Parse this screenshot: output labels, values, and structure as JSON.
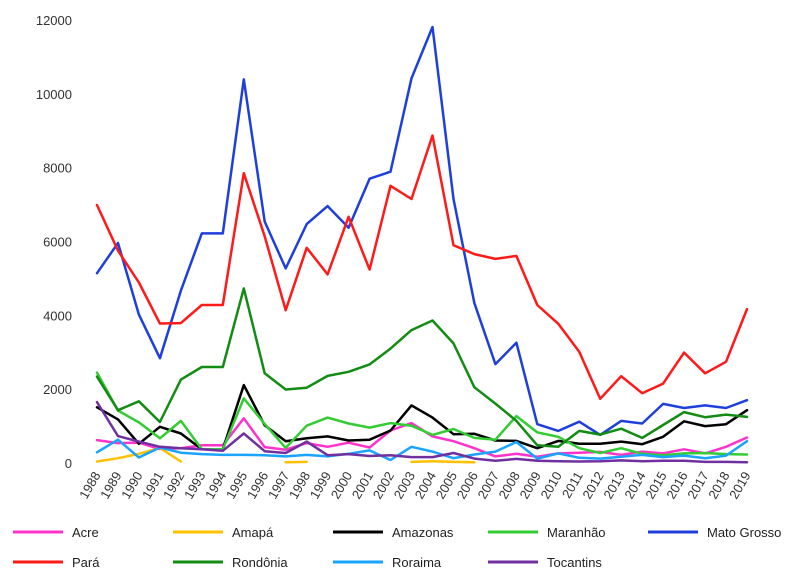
{
  "chart_data": {
    "type": "line",
    "x": [
      1988,
      1989,
      1990,
      1991,
      1992,
      1993,
      1994,
      1995,
      1996,
      1997,
      1998,
      1999,
      2000,
      2001,
      2002,
      2003,
      2004,
      2005,
      2006,
      2007,
      2008,
      2009,
      2010,
      2011,
      2012,
      2013,
      2014,
      2015,
      2016,
      2017,
      2018,
      2019
    ],
    "x_tick_labels": [
      "1988",
      "1989",
      "1990",
      "1991",
      "1992",
      "1993",
      "1994",
      "1995",
      "1996",
      "1997",
      "1998",
      "1999",
      "2000",
      "2001",
      "2002",
      "2003",
      "2004",
      "2005",
      "2006",
      "2007",
      "2008",
      "2009",
      "2010",
      "2011",
      "2012",
      "2013",
      "2014",
      "2015",
      "2016",
      "2017",
      "2018",
      "2019"
    ],
    "y_tick_labels": [
      "0",
      "2000",
      "4000",
      "6000",
      "8000",
      "10000",
      "12000"
    ],
    "ylim": [
      0,
      12000
    ],
    "grid": false,
    "legend_position": "bottom",
    "series": [
      {
        "name": "Acre",
        "color": "#ff33cc",
        "values": [
          620,
          540,
          550,
          380,
          400,
          480,
          480,
          1210,
          430,
          360,
          540,
          440,
          550,
          420,
          880,
          1080,
          720,
          590,
          400,
          180,
          250,
          170,
          260,
          280,
          300,
          220,
          310,
          260,
          370,
          260,
          440,
          690
        ]
      },
      {
        "name": "Amapá",
        "color": "#ffc000",
        "values": [
          40,
          130,
          250,
          410,
          40,
          null,
          null,
          null,
          null,
          20,
          30,
          null,
          null,
          null,
          null,
          30,
          50,
          30,
          20,
          null,
          null,
          null,
          null,
          null,
          null,
          null,
          null,
          null,
          null,
          null,
          null,
          null
        ]
      },
      {
        "name": "Amazonas",
        "color": "#000000",
        "values": [
          1510,
          1180,
          520,
          980,
          800,
          370,
          370,
          2110,
          1020,
          590,
          670,
          720,
          610,
          630,
          880,
          1560,
          1230,
          780,
          790,
          610,
          600,
          400,
          600,
          520,
          520,
          580,
          510,
          710,
          1130,
          1000,
          1050,
          1430
        ]
      },
      {
        "name": "Maranhão",
        "color": "#33cc33",
        "values": [
          2450,
          1420,
          1100,
          670,
          1140,
          370,
          370,
          1750,
          1060,
          410,
          1010,
          1230,
          1070,
          960,
          1080,
          1010,
          760,
          920,
          680,
          630,
          1270,
          830,
          710,
          400,
          270,
          400,
          250,
          210,
          260,
          270,
          240,
          230
        ]
      },
      {
        "name": "Mato Grosso",
        "color": "#1f3fdc",
        "values": [
          5140,
          5960,
          4020,
          2840,
          4670,
          6220,
          6220,
          10390,
          6540,
          5270,
          6470,
          6960,
          6370,
          7700,
          7890,
          10420,
          11810,
          7150,
          4330,
          2680,
          3260,
          1050,
          870,
          1120,
          760,
          1140,
          1070,
          1600,
          1490,
          1560,
          1490,
          1700
        ]
      },
      {
        "name": "Pará",
        "color": "#ff1a1a",
        "values": [
          6990,
          5750,
          4890,
          3780,
          3790,
          4280,
          4280,
          7850,
          6140,
          4140,
          5830,
          5110,
          6670,
          5240,
          7510,
          7150,
          8870,
          5900,
          5660,
          5530,
          5610,
          4280,
          3770,
          3010,
          1740,
          2350,
          1890,
          2150,
          2990,
          2430,
          2740,
          4170
        ]
      },
      {
        "name": "Rondônia",
        "color": "#128c12",
        "values": [
          2340,
          1430,
          1670,
          1110,
          2260,
          2600,
          2600,
          4730,
          2430,
          1990,
          2040,
          2360,
          2470,
          2670,
          3100,
          3600,
          3860,
          3240,
          2050,
          1610,
          1140,
          480,
          440,
          870,
          770,
          930,
          680,
          1030,
          1380,
          1240,
          1310,
          1250
        ]
      },
      {
        "name": "Roraima",
        "color": "#1aa3ff",
        "values": [
          290,
          630,
          150,
          420,
          280,
          240,
          220,
          220,
          210,
          180,
          220,
          180,
          250,
          340,
          80,
          440,
          310,
          130,
          230,
          310,
          570,
          120,
          260,
          140,
          120,
          170,
          220,
          160,
          200,
          130,
          200,
          590
        ]
      },
      {
        "name": "Tocantins",
        "color": "#7030a0",
        "values": [
          1650,
          730,
          580,
          440,
          400,
          370,
          330,
          800,
          320,
          270,
          580,
          210,
          240,
          190,
          210,
          160,
          160,
          270,
          120,
          60,
          110,
          60,
          50,
          40,
          50,
          70,
          50,
          60,
          60,
          30,
          30,
          20
        ]
      }
    ]
  }
}
